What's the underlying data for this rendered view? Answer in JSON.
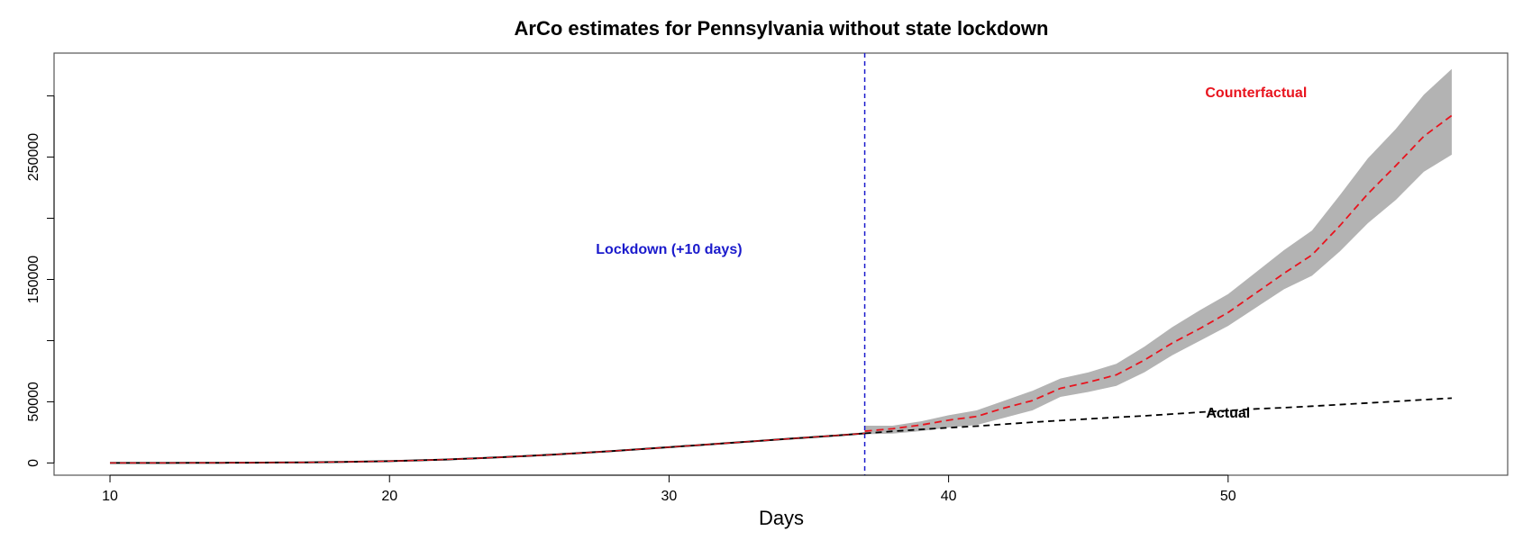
{
  "chart_data": {
    "type": "line",
    "title": "ArCo estimates for Pennsylvania without state lockdown",
    "xlabel": "Days",
    "ylabel": "",
    "xlim": [
      8,
      60
    ],
    "ylim": [
      -10000,
      335000
    ],
    "x_ticks": [
      10,
      20,
      30,
      40,
      50
    ],
    "y_ticks": [
      0,
      50000,
      100000,
      150000,
      200000,
      250000,
      300000
    ],
    "y_tick_labels": [
      "0",
      "50000",
      "",
      "150000",
      "",
      "250000",
      ""
    ],
    "grid": false,
    "lockdown_line": {
      "x": 37,
      "label": "Lockdown (+10 days)",
      "label_x": 30,
      "label_y": 171000,
      "color": "#1a1acc"
    },
    "annotations": [
      {
        "text": "Counterfactual",
        "x": 51,
        "y": 299000,
        "color": "#e8141e"
      },
      {
        "text": "Actual",
        "x": 50,
        "y": 37000,
        "color": "#000000"
      }
    ],
    "colors": {
      "band": "#b3b3b3",
      "counterfactual": "#e8141e",
      "actual": "#000000"
    },
    "series": [
      {
        "name": "Actual",
        "style": "solid-then-dashed",
        "break_x": 37,
        "x": [
          10,
          11,
          12,
          13,
          14,
          15,
          16,
          17,
          18,
          19,
          20,
          21,
          22,
          23,
          24,
          25,
          26,
          27,
          28,
          29,
          30,
          31,
          32,
          33,
          34,
          35,
          36,
          37,
          38,
          39,
          40,
          41,
          42,
          43,
          44,
          45,
          46,
          47,
          48,
          49,
          50,
          51,
          52,
          53,
          54,
          55,
          56,
          57,
          58
        ],
        "values": [
          0,
          20,
          50,
          90,
          150,
          230,
          350,
          500,
          750,
          1100,
          1500,
          2100,
          2800,
          3700,
          4700,
          5800,
          7000,
          8400,
          9800,
          11300,
          12900,
          14500,
          16100,
          17700,
          19300,
          20900,
          22500,
          24200,
          25900,
          27400,
          28800,
          30100,
          31700,
          33300,
          34700,
          36000,
          37300,
          38500,
          40000,
          41500,
          42800,
          44200,
          45200,
          46400,
          47700,
          49000,
          50300,
          51700,
          53000
        ]
      },
      {
        "name": "Counterfactual",
        "style": "dashed",
        "x": [
          37,
          38,
          39,
          40,
          41,
          42,
          43,
          44,
          45,
          46,
          47,
          48,
          49,
          50,
          51,
          52,
          53,
          54,
          55,
          56,
          57,
          58
        ],
        "values": [
          26000,
          28000,
          31000,
          35000,
          38000,
          45000,
          51000,
          61000,
          66000,
          72000,
          84000,
          98000,
          110000,
          123000,
          139000,
          155000,
          170000,
          194000,
          220000,
          243000,
          267000,
          284000
        ]
      }
    ],
    "band": {
      "name": "Counterfactual interval",
      "x": [
        37,
        38,
        39,
        40,
        41,
        42,
        43,
        44,
        45,
        46,
        47,
        48,
        49,
        50,
        51,
        52,
        53,
        54,
        55,
        56,
        57,
        58
      ],
      "lower": [
        23500,
        24000,
        26000,
        29000,
        31000,
        37000,
        43000,
        54000,
        58000,
        63000,
        74000,
        88000,
        100000,
        112000,
        127000,
        142000,
        153000,
        173000,
        196000,
        215000,
        238000,
        252000
      ],
      "upper": [
        30500,
        30500,
        34000,
        39000,
        43000,
        51000,
        59000,
        69000,
        74000,
        81000,
        95000,
        111000,
        125000,
        138000,
        156000,
        174000,
        190000,
        219000,
        249000,
        273000,
        301000,
        322000
      ]
    }
  }
}
